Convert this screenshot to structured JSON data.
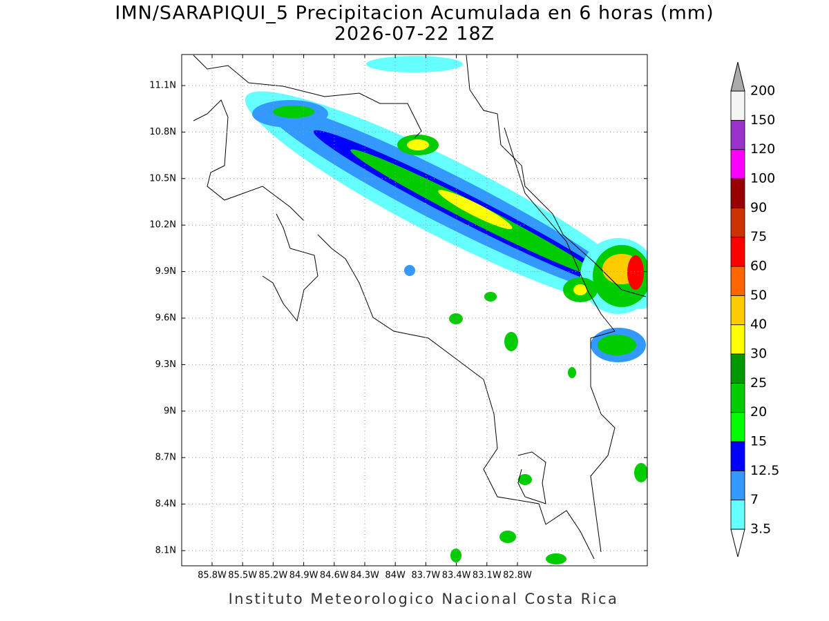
{
  "title": "IMN/SARAPIQUI_5 Precipitacion Acumulada en 6 horas (mm)",
  "subtitle": "2026-07-22 18Z",
  "footer": "Instituto Meteorologico Nacional Costa Rica",
  "lat_ticks": [
    "11.1N",
    "10.8N",
    "10.5N",
    "10.2N",
    "9.9N",
    "9.6N",
    "9.3N",
    "9N",
    "8.7N",
    "8.4N",
    "8.1N"
  ],
  "lon_ticks": [
    "85.8W",
    "85.5W",
    "85.2W",
    "84.9W",
    "84.6W",
    "84.3W",
    "84W",
    "83.7W",
    "83.4W",
    "83.1W",
    "82.8W"
  ],
  "colorbar": {
    "labels": [
      "3.5",
      "7",
      "12.5",
      "15",
      "20",
      "25",
      "30",
      "40",
      "50",
      "60",
      "75",
      "90",
      "100",
      "120",
      "150",
      "200"
    ],
    "colors": [
      "#66ffff",
      "#3399ff",
      "#0000ff",
      "#00ff00",
      "#00cc00",
      "#009900",
      "#ffff00",
      "#ffcc00",
      "#ff6600",
      "#ff0000",
      "#cc3300",
      "#990000",
      "#ff00ff",
      "#9933cc",
      "#f5f5f5"
    ],
    "under_color": "#ffffff",
    "over_color": "#aaaaaa"
  }
}
